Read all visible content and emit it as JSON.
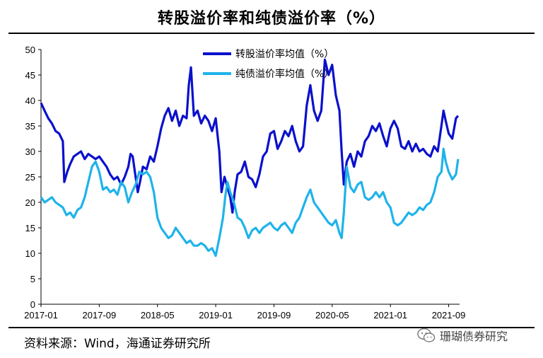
{
  "title": "转股溢价率和纯债溢价率（%）",
  "source": "资料来源：Wind，海通证券研究所",
  "watermark": {
    "icon": "wechat-icon",
    "text": "珊瑚债券研究"
  },
  "chart_data": {
    "type": "line",
    "title": "转股溢价率和纯债溢价率（%）",
    "ylim": [
      0,
      50
    ],
    "yticks": [
      0,
      5,
      10,
      15,
      20,
      25,
      30,
      35,
      40,
      45,
      50
    ],
    "xlim": [
      0,
      57.5
    ],
    "xticks": [
      {
        "label": "2017-01",
        "t": 0
      },
      {
        "label": "2017-09",
        "t": 8
      },
      {
        "label": "2018-05",
        "t": 16
      },
      {
        "label": "2019-01",
        "t": 24
      },
      {
        "label": "2019-09",
        "t": 32
      },
      {
        "label": "2020-05",
        "t": 40
      },
      {
        "label": "2021-01",
        "t": 48
      },
      {
        "label": "2021-09",
        "t": 56
      }
    ],
    "legend_position": "top-center",
    "grid": false,
    "series": [
      {
        "name": "转股溢价率均值（%）",
        "color": "#0a10cc",
        "points": [
          [
            0,
            39.5
          ],
          [
            0.5,
            38
          ],
          [
            1,
            36.5
          ],
          [
            1.5,
            35.5
          ],
          [
            2,
            34
          ],
          [
            2.5,
            33.5
          ],
          [
            3,
            32
          ],
          [
            3.2,
            24
          ],
          [
            3.6,
            26
          ],
          [
            4,
            27.5
          ],
          [
            4.5,
            29
          ],
          [
            5,
            29.5
          ],
          [
            5.5,
            30
          ],
          [
            6,
            28.5
          ],
          [
            6.5,
            29.5
          ],
          [
            7,
            29
          ],
          [
            7.5,
            28.5
          ],
          [
            8,
            29
          ],
          [
            8.5,
            28
          ],
          [
            9,
            27
          ],
          [
            9.5,
            25.5
          ],
          [
            10,
            24.5
          ],
          [
            10.5,
            25
          ],
          [
            11,
            23.5
          ],
          [
            11.5,
            25
          ],
          [
            12,
            27
          ],
          [
            12.3,
            29.5
          ],
          [
            12.6,
            29
          ],
          [
            13,
            25
          ],
          [
            13.3,
            22
          ],
          [
            13.6,
            24
          ],
          [
            14,
            27
          ],
          [
            14.5,
            26.5
          ],
          [
            15,
            29
          ],
          [
            15.5,
            28
          ],
          [
            16,
            31
          ],
          [
            16.5,
            34.5
          ],
          [
            17,
            37
          ],
          [
            17.5,
            38.5
          ],
          [
            18,
            36
          ],
          [
            18.5,
            38
          ],
          [
            19,
            35
          ],
          [
            19.5,
            37
          ],
          [
            20,
            36.5
          ],
          [
            20.3,
            43
          ],
          [
            20.6,
            46.5
          ],
          [
            21,
            37
          ],
          [
            21.5,
            38
          ],
          [
            22,
            35.5
          ],
          [
            22.5,
            37
          ],
          [
            23,
            36
          ],
          [
            23.5,
            34
          ],
          [
            24,
            36.5
          ],
          [
            24.5,
            30
          ],
          [
            24.8,
            22
          ],
          [
            25.2,
            25
          ],
          [
            25.6,
            23
          ],
          [
            26,
            21
          ],
          [
            26.3,
            18
          ],
          [
            26.6,
            22
          ],
          [
            27,
            25.5
          ],
          [
            27.5,
            26
          ],
          [
            28,
            28
          ],
          [
            28.5,
            25
          ],
          [
            29,
            24.5
          ],
          [
            29.5,
            23
          ],
          [
            30,
            25.5
          ],
          [
            30.5,
            29
          ],
          [
            31,
            30
          ],
          [
            31.5,
            33.5
          ],
          [
            32,
            34
          ],
          [
            32.5,
            30.5
          ],
          [
            33,
            32
          ],
          [
            33.5,
            34
          ],
          [
            34,
            33
          ],
          [
            34.5,
            35
          ],
          [
            35,
            32
          ],
          [
            35.5,
            30
          ],
          [
            36,
            31
          ],
          [
            36.5,
            39
          ],
          [
            37,
            43
          ],
          [
            37.5,
            38
          ],
          [
            38,
            36
          ],
          [
            38.5,
            38
          ],
          [
            39,
            48
          ],
          [
            39.5,
            45
          ],
          [
            40,
            47
          ],
          [
            40.5,
            41
          ],
          [
            41,
            38
          ],
          [
            41.3,
            30
          ],
          [
            41.6,
            23.5
          ],
          [
            42,
            28
          ],
          [
            42.5,
            29.5
          ],
          [
            43,
            27
          ],
          [
            43.5,
            30
          ],
          [
            44,
            29
          ],
          [
            44.5,
            32
          ],
          [
            45,
            33
          ],
          [
            45.5,
            35
          ],
          [
            46,
            34
          ],
          [
            46.5,
            35.5
          ],
          [
            47,
            33
          ],
          [
            47.5,
            31
          ],
          [
            48,
            34.5
          ],
          [
            48.5,
            36
          ],
          [
            49,
            34.5
          ],
          [
            49.5,
            31
          ],
          [
            50,
            30.5
          ],
          [
            50.5,
            32
          ],
          [
            51,
            30
          ],
          [
            51.5,
            31.5
          ],
          [
            52,
            30
          ],
          [
            52.5,
            30.5
          ],
          [
            53,
            29.5
          ],
          [
            53.5,
            29
          ],
          [
            54,
            31
          ],
          [
            54.5,
            30
          ],
          [
            55,
            35
          ],
          [
            55.3,
            38
          ],
          [
            55.6,
            36
          ],
          [
            56,
            33.5
          ],
          [
            56.5,
            32.5
          ],
          [
            57,
            36.5
          ],
          [
            57.3,
            37
          ]
        ]
      },
      {
        "name": "纯债溢价率均值（%）",
        "color": "#1eb3ea",
        "points": [
          [
            0,
            21
          ],
          [
            0.5,
            20
          ],
          [
            1,
            20.5
          ],
          [
            1.5,
            21
          ],
          [
            2,
            20
          ],
          [
            2.5,
            19.5
          ],
          [
            3,
            19
          ],
          [
            3.5,
            17.5
          ],
          [
            4,
            18
          ],
          [
            4.5,
            17
          ],
          [
            5,
            18.5
          ],
          [
            5.5,
            19
          ],
          [
            6,
            21
          ],
          [
            6.5,
            24
          ],
          [
            7,
            27
          ],
          [
            7.5,
            28
          ],
          [
            8,
            26
          ],
          [
            8.5,
            22.5
          ],
          [
            9,
            23
          ],
          [
            9.5,
            22
          ],
          [
            10,
            22.5
          ],
          [
            10.5,
            21.5
          ],
          [
            11,
            24
          ],
          [
            11.5,
            23
          ],
          [
            12,
            20
          ],
          [
            12.5,
            22
          ],
          [
            13,
            23.5
          ],
          [
            13.5,
            26
          ],
          [
            14,
            25.5
          ],
          [
            14.5,
            26
          ],
          [
            15,
            25
          ],
          [
            15.5,
            22
          ],
          [
            16,
            17
          ],
          [
            16.5,
            15
          ],
          [
            17,
            14
          ],
          [
            17.5,
            13
          ],
          [
            18,
            13.5
          ],
          [
            18.5,
            15
          ],
          [
            19,
            14
          ],
          [
            19.5,
            13
          ],
          [
            20,
            12
          ],
          [
            20.5,
            12.5
          ],
          [
            21,
            11.5
          ],
          [
            21.5,
            11.5
          ],
          [
            22,
            12
          ],
          [
            22.5,
            11.5
          ],
          [
            23,
            10.5
          ],
          [
            23.5,
            11
          ],
          [
            24,
            9.5
          ],
          [
            24.5,
            13
          ],
          [
            25,
            17
          ],
          [
            25.3,
            21
          ],
          [
            25.6,
            24
          ],
          [
            26,
            22
          ],
          [
            26.5,
            20
          ],
          [
            27,
            17
          ],
          [
            27.5,
            16.5
          ],
          [
            28,
            15
          ],
          [
            28.5,
            13
          ],
          [
            29,
            14.5
          ],
          [
            29.5,
            15
          ],
          [
            30,
            14
          ],
          [
            30.5,
            15
          ],
          [
            31,
            15.5
          ],
          [
            31.5,
            16
          ],
          [
            32,
            15
          ],
          [
            32.5,
            14.5
          ],
          [
            33,
            15.5
          ],
          [
            33.5,
            16
          ],
          [
            34,
            15
          ],
          [
            34.5,
            14
          ],
          [
            35,
            16
          ],
          [
            35.5,
            17
          ],
          [
            36,
            19
          ],
          [
            36.5,
            21
          ],
          [
            37,
            22.5
          ],
          [
            37.5,
            20
          ],
          [
            38,
            19
          ],
          [
            38.5,
            18
          ],
          [
            39,
            17
          ],
          [
            39.5,
            16
          ],
          [
            40,
            15.5
          ],
          [
            40.5,
            16.5
          ],
          [
            41,
            14
          ],
          [
            41.3,
            13
          ],
          [
            41.6,
            18
          ],
          [
            42,
            27
          ],
          [
            42.5,
            23
          ],
          [
            43,
            22
          ],
          [
            43.5,
            23.5
          ],
          [
            44,
            24
          ],
          [
            44.5,
            21
          ],
          [
            45,
            20.5
          ],
          [
            45.5,
            21
          ],
          [
            46,
            22
          ],
          [
            46.5,
            21
          ],
          [
            47,
            22
          ],
          [
            47.5,
            20
          ],
          [
            48,
            19
          ],
          [
            48.5,
            16
          ],
          [
            49,
            15.5
          ],
          [
            49.5,
            16
          ],
          [
            50,
            17
          ],
          [
            50.5,
            18
          ],
          [
            51,
            17.5
          ],
          [
            51.5,
            18
          ],
          [
            52,
            19
          ],
          [
            52.5,
            18.5
          ],
          [
            53,
            19.5
          ],
          [
            53.5,
            20
          ],
          [
            54,
            22
          ],
          [
            54.5,
            25
          ],
          [
            55,
            26
          ],
          [
            55.3,
            30.5
          ],
          [
            55.6,
            28
          ],
          [
            56,
            26
          ],
          [
            56.5,
            24.5
          ],
          [
            57,
            25.5
          ],
          [
            57.3,
            28.5
          ]
        ]
      }
    ]
  }
}
